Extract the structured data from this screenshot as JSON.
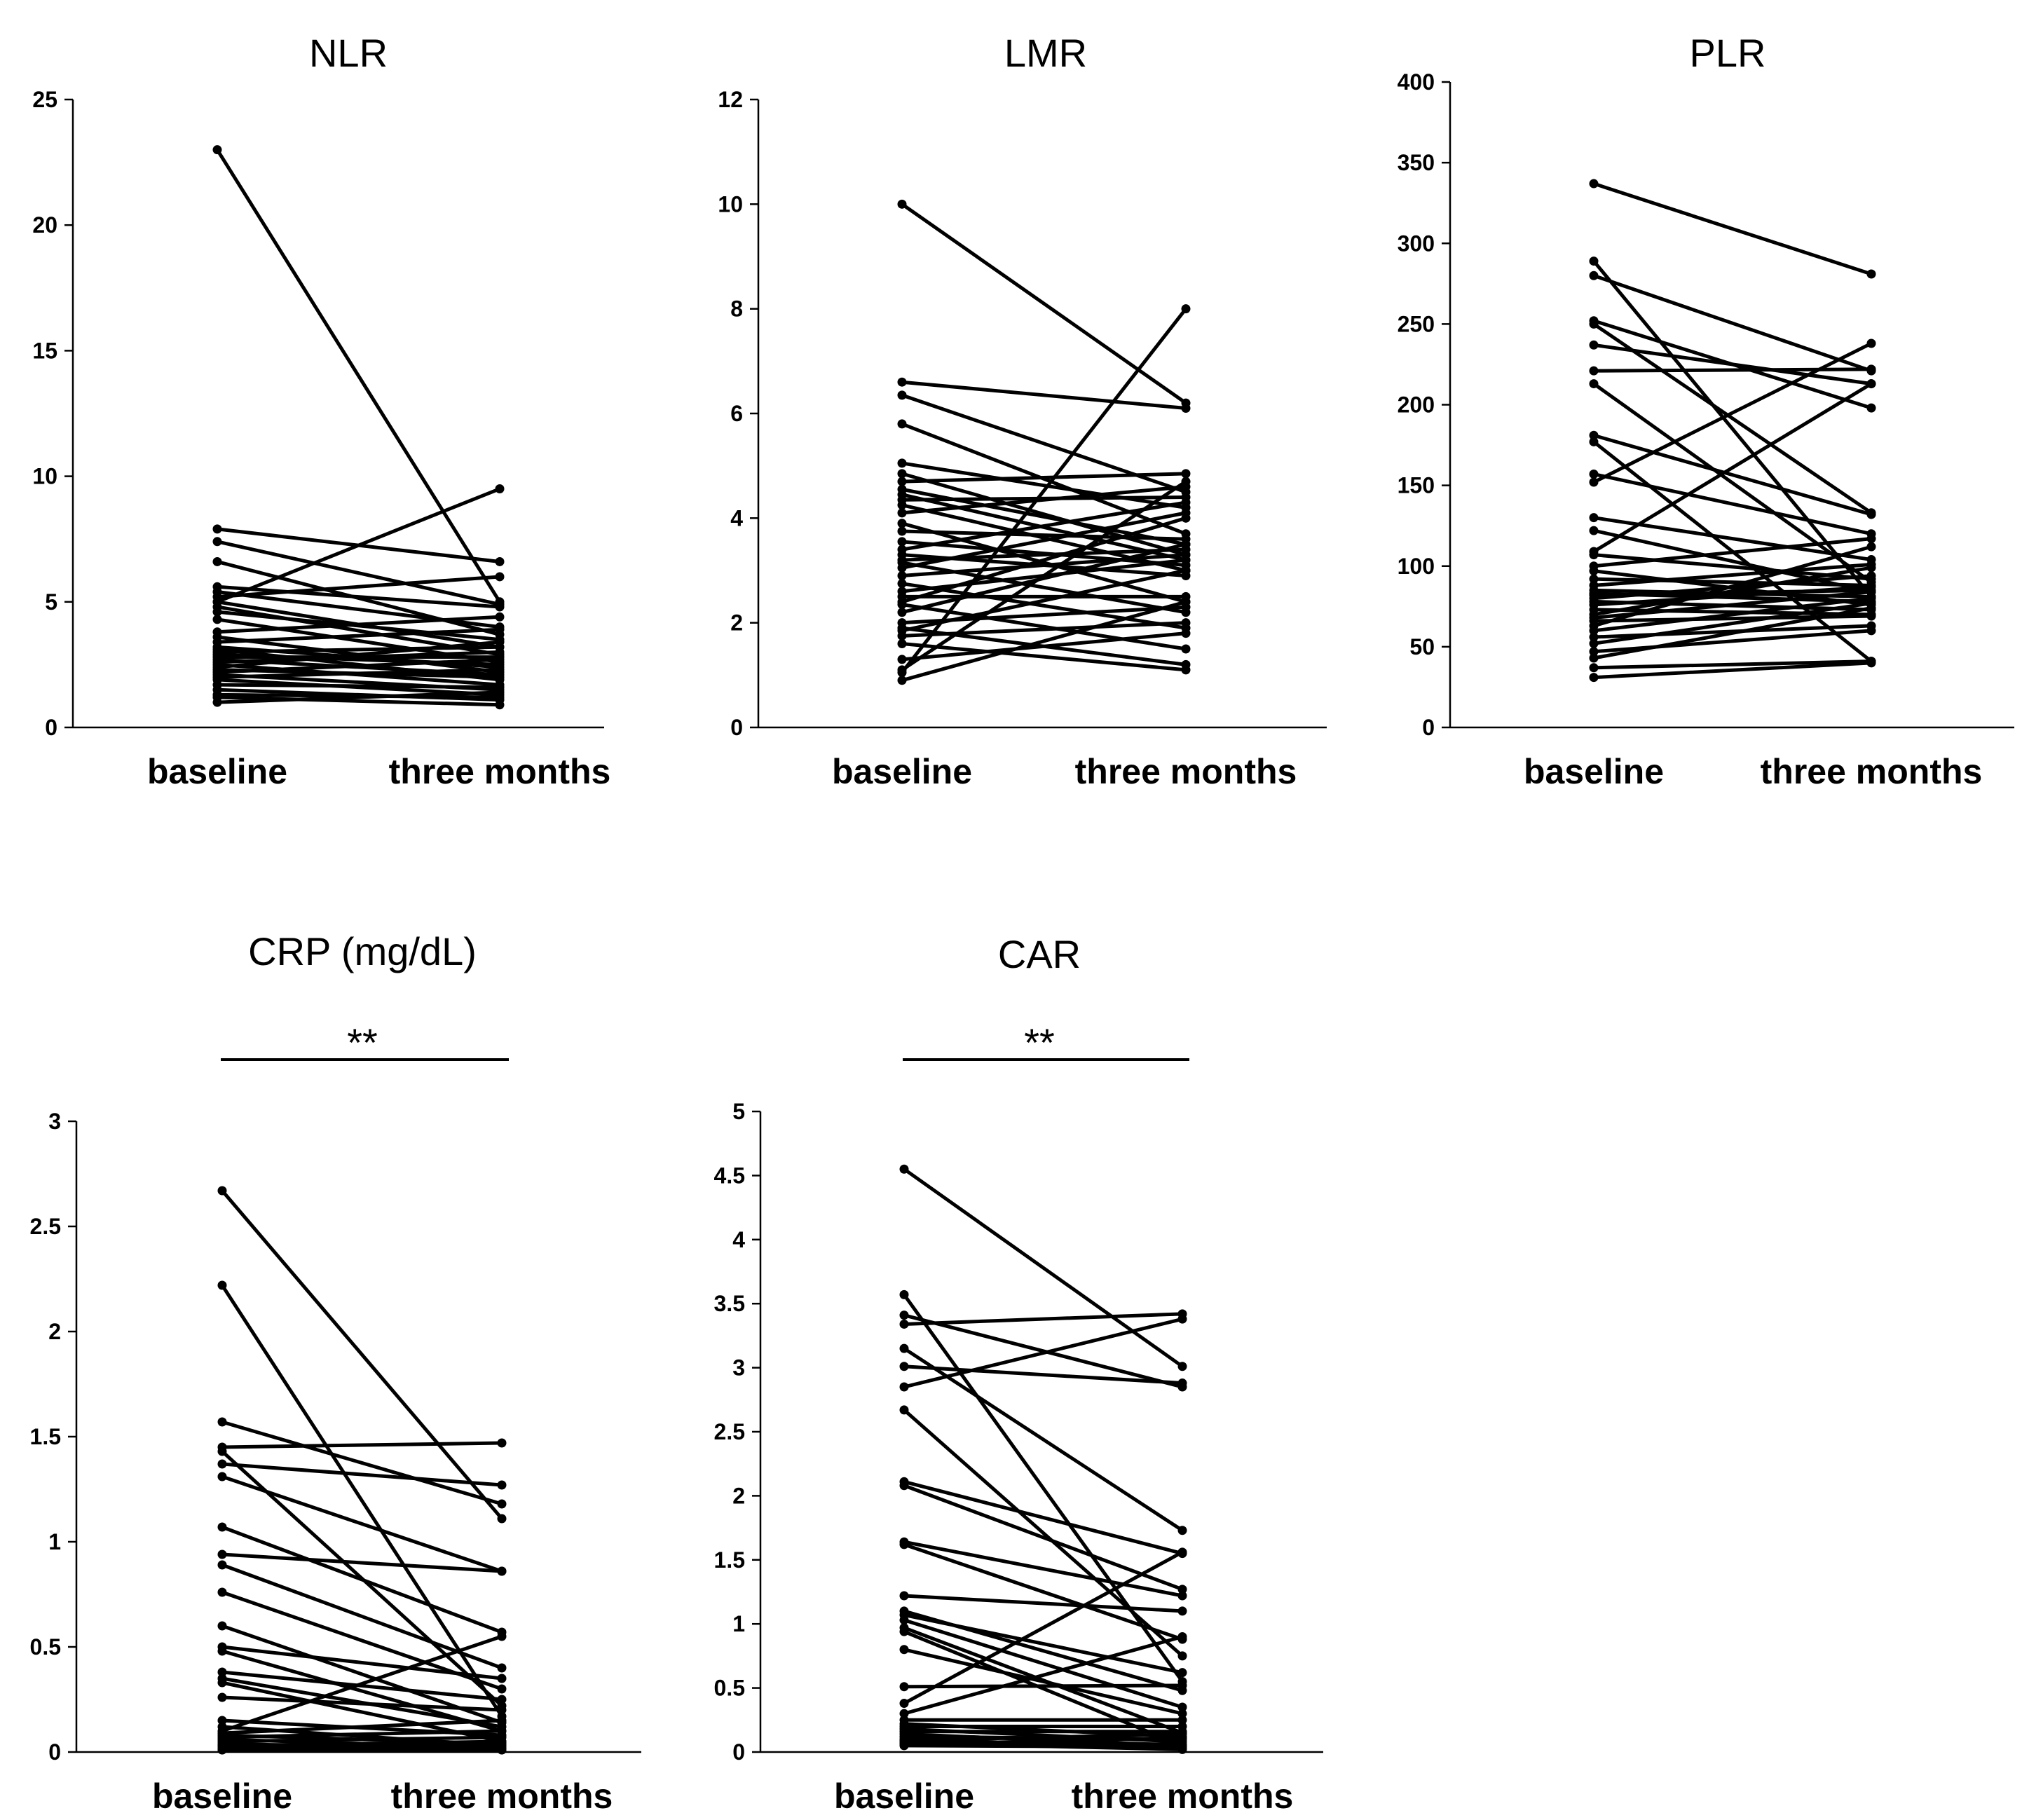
{
  "chart_data": [
    {
      "type": "line",
      "title": "NLR",
      "categories": [
        "baseline",
        "three months"
      ],
      "ylim": [
        0,
        25
      ],
      "yticks": [
        "0",
        "5",
        "10",
        "15",
        "20",
        "25"
      ],
      "significance": "",
      "pairs": [
        [
          23.0,
          5.0
        ],
        [
          5.0,
          9.5
        ],
        [
          7.9,
          6.6
        ],
        [
          7.4,
          4.9
        ],
        [
          6.6,
          3.7
        ],
        [
          5.6,
          4.8
        ],
        [
          5.4,
          4.0
        ],
        [
          5.2,
          6.0
        ],
        [
          5.0,
          3.2
        ],
        [
          4.8,
          2.9
        ],
        [
          4.6,
          3.5
        ],
        [
          4.3,
          2.6
        ],
        [
          3.8,
          4.4
        ],
        [
          3.6,
          2.2
        ],
        [
          3.4,
          3.9
        ],
        [
          3.2,
          2.4
        ],
        [
          3.1,
          1.9
        ],
        [
          3.0,
          3.2
        ],
        [
          2.9,
          2.5
        ],
        [
          2.8,
          2.8
        ],
        [
          2.7,
          2.1
        ],
        [
          2.6,
          3.0
        ],
        [
          2.5,
          1.7
        ],
        [
          2.4,
          3.4
        ],
        [
          2.3,
          2.0
        ],
        [
          2.2,
          2.7
        ],
        [
          2.1,
          1.5
        ],
        [
          2.0,
          2.3
        ],
        [
          1.9,
          1.3
        ],
        [
          1.7,
          1.6
        ],
        [
          1.5,
          1.1
        ],
        [
          1.3,
          1.2
        ],
        [
          1.2,
          0.9
        ],
        [
          1.0,
          1.4
        ]
      ]
    },
    {
      "type": "line",
      "title": "LMR",
      "categories": [
        "baseline",
        "three months"
      ],
      "ylim": [
        0,
        12
      ],
      "yticks": [
        "0",
        "2",
        "4",
        "6",
        "8",
        "10",
        "12"
      ],
      "significance": "",
      "pairs": [
        [
          10.0,
          6.2
        ],
        [
          6.6,
          6.1
        ],
        [
          6.35,
          4.5
        ],
        [
          5.8,
          3.7
        ],
        [
          5.05,
          4.2
        ],
        [
          4.85,
          3.3
        ],
        [
          4.7,
          4.85
        ],
        [
          4.55,
          3.5
        ],
        [
          4.45,
          3.2
        ],
        [
          4.35,
          4.4
        ],
        [
          4.25,
          3.0
        ],
        [
          4.1,
          4.6
        ],
        [
          3.9,
          2.4
        ],
        [
          3.75,
          3.6
        ],
        [
          3.55,
          3.1
        ],
        [
          3.4,
          4.3
        ],
        [
          3.3,
          2.9
        ],
        [
          3.2,
          3.4
        ],
        [
          3.15,
          2.2
        ],
        [
          3.05,
          4.1
        ],
        [
          2.9,
          3.3
        ],
        [
          2.75,
          1.9
        ],
        [
          2.6,
          3.2
        ],
        [
          2.5,
          2.5
        ],
        [
          2.4,
          4.0
        ],
        [
          2.35,
          1.5
        ],
        [
          2.2,
          3.5
        ],
        [
          2.0,
          2.3
        ],
        [
          1.9,
          1.2
        ],
        [
          1.85,
          3.0
        ],
        [
          1.75,
          2.0
        ],
        [
          1.6,
          1.1
        ],
        [
          1.3,
          1.8
        ],
        [
          1.1,
          4.7
        ],
        [
          1.05,
          8.0
        ],
        [
          0.9,
          2.4
        ]
      ]
    },
    {
      "type": "line",
      "title": "PLR",
      "categories": [
        "baseline",
        "three months"
      ],
      "ylim": [
        0,
        400
      ],
      "yticks": [
        "0",
        "50",
        "100",
        "150",
        "200",
        "250",
        "300",
        "350",
        "400"
      ],
      "significance": "",
      "pairs": [
        [
          337,
          281
        ],
        [
          289,
          81
        ],
        [
          280,
          221
        ],
        [
          252,
          198
        ],
        [
          250,
          133
        ],
        [
          237,
          213
        ],
        [
          221,
          222
        ],
        [
          213,
          90
        ],
        [
          181,
          132
        ],
        [
          177,
          41
        ],
        [
          157,
          120
        ],
        [
          152,
          238
        ],
        [
          130,
          104
        ],
        [
          122,
          84
        ],
        [
          109,
          213
        ],
        [
          107,
          92
        ],
        [
          100,
          117
        ],
        [
          97,
          76
        ],
        [
          92,
          88
        ],
        [
          88,
          101
        ],
        [
          85,
          81
        ],
        [
          83,
          78
        ],
        [
          82,
          85
        ],
        [
          80,
          94
        ],
        [
          78,
          73
        ],
        [
          76,
          87
        ],
        [
          73,
          70
        ],
        [
          70,
          99
        ],
        [
          68,
          84
        ],
        [
          66,
          69
        ],
        [
          63,
          112
        ],
        [
          60,
          80
        ],
        [
          56,
          63
        ],
        [
          52,
          77
        ],
        [
          47,
          60
        ],
        [
          43,
          74
        ],
        [
          37,
          41
        ],
        [
          31,
          40
        ]
      ]
    },
    {
      "type": "line",
      "title": "CRP (mg/dL)",
      "categories": [
        "baseline",
        "three months"
      ],
      "ylim": [
        0,
        3
      ],
      "yticks": [
        "0",
        "0.5",
        "1",
        "1.5",
        "2",
        "2.5",
        "3"
      ],
      "significance": "**",
      "pairs": [
        [
          2.67,
          1.11
        ],
        [
          2.22,
          0.17
        ],
        [
          1.57,
          1.18
        ],
        [
          1.45,
          1.47
        ],
        [
          1.43,
          0.22
        ],
        [
          1.37,
          1.27
        ],
        [
          1.31,
          0.86
        ],
        [
          1.07,
          0.57
        ],
        [
          0.94,
          0.86
        ],
        [
          0.89,
          0.4
        ],
        [
          0.76,
          0.3
        ],
        [
          0.6,
          0.14
        ],
        [
          0.5,
          0.35
        ],
        [
          0.48,
          0.1
        ],
        [
          0.38,
          0.25
        ],
        [
          0.35,
          0.12
        ],
        [
          0.33,
          0.05
        ],
        [
          0.26,
          0.2
        ],
        [
          0.15,
          0.08
        ],
        [
          0.12,
          0.03
        ],
        [
          0.1,
          0.55
        ],
        [
          0.09,
          0.15
        ],
        [
          0.08,
          0.04
        ],
        [
          0.07,
          0.1
        ],
        [
          0.06,
          0.02
        ],
        [
          0.05,
          0.07
        ],
        [
          0.04,
          0.01
        ],
        [
          0.03,
          0.05
        ],
        [
          0.03,
          0.02
        ],
        [
          0.02,
          0.04
        ],
        [
          0.01,
          0.01
        ],
        [
          0.01,
          0.03
        ]
      ]
    },
    {
      "type": "line",
      "title": "CAR",
      "categories": [
        "baseline",
        "three months"
      ],
      "ylim": [
        0,
        5
      ],
      "yticks": [
        "0",
        "0.5",
        "1",
        "1.5",
        "2",
        "2.5",
        "3",
        "3.5",
        "4",
        "4.5",
        "5"
      ],
      "significance": "**",
      "pairs": [
        [
          4.55,
          3.01
        ],
        [
          3.57,
          0.55
        ],
        [
          3.41,
          2.85
        ],
        [
          3.34,
          3.42
        ],
        [
          3.15,
          1.73
        ],
        [
          3.01,
          2.88
        ],
        [
          2.85,
          3.38
        ],
        [
          2.67,
          0.75
        ],
        [
          2.11,
          1.55
        ],
        [
          2.08,
          1.27
        ],
        [
          1.64,
          1.22
        ],
        [
          1.62,
          0.88
        ],
        [
          1.22,
          1.1
        ],
        [
          1.1,
          0.48
        ],
        [
          1.07,
          0.62
        ],
        [
          1.03,
          0.35
        ],
        [
          0.97,
          0.15
        ],
        [
          0.94,
          0.05
        ],
        [
          0.8,
          0.3
        ],
        [
          0.51,
          0.52
        ],
        [
          0.38,
          1.56
        ],
        [
          0.3,
          0.9
        ],
        [
          0.25,
          0.25
        ],
        [
          0.22,
          0.12
        ],
        [
          0.2,
          0.2
        ],
        [
          0.18,
          0.08
        ],
        [
          0.16,
          0.16
        ],
        [
          0.14,
          0.05
        ],
        [
          0.12,
          0.1
        ],
        [
          0.1,
          0.03
        ],
        [
          0.09,
          0.14
        ],
        [
          0.08,
          0.06
        ],
        [
          0.07,
          0.02
        ],
        [
          0.06,
          0.11
        ],
        [
          0.05,
          0.04
        ]
      ]
    }
  ]
}
